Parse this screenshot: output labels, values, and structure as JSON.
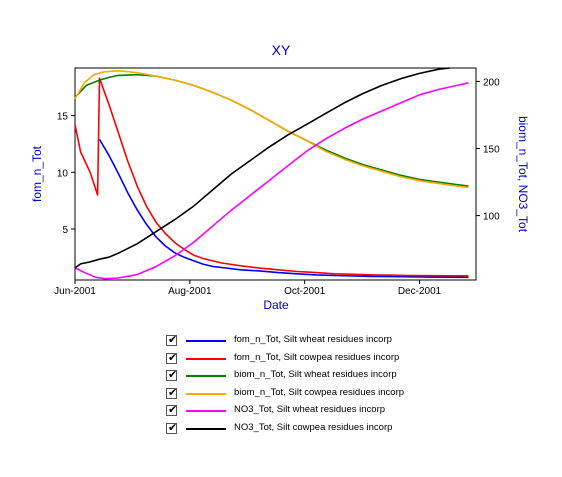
{
  "chart_data": {
    "type": "line",
    "title": "XY",
    "xlabel": "Date",
    "ylabel_left": "fom_n_Tot",
    "ylabel_right": "biom_n_Tot, NO3_Tot",
    "x_ticks": [
      "Jun-2001",
      "Aug-2001",
      "Oct-2001",
      "Dec-2001"
    ],
    "y_left_ticks": [
      "5",
      "10",
      "15"
    ],
    "y_right_ticks": [
      "100",
      "150",
      "200"
    ],
    "x_domain_days": [
      152,
      365
    ],
    "y_left_range": [
      0.5,
      19.2
    ],
    "y_right_range": [
      52,
      210
    ],
    "grid": false,
    "legend_position": "below",
    "series": [
      {
        "name": "fom_n_Tot, Silt wheat residues incorp",
        "axis": "left",
        "color": "#0000ff",
        "points": [
          [
            165,
            12.9
          ],
          [
            170,
            11.5
          ],
          [
            175,
            9.9
          ],
          [
            180,
            8.2
          ],
          [
            185,
            6.7
          ],
          [
            190,
            5.4
          ],
          [
            195,
            4.3
          ],
          [
            200,
            3.5
          ],
          [
            205,
            2.9
          ],
          [
            210,
            2.5
          ],
          [
            215,
            2.2
          ],
          [
            220,
            1.9
          ],
          [
            225,
            1.7
          ],
          [
            230,
            1.6
          ],
          [
            240,
            1.4
          ],
          [
            250,
            1.3
          ],
          [
            260,
            1.15
          ],
          [
            270,
            1.05
          ],
          [
            280,
            0.95
          ],
          [
            290,
            0.9
          ],
          [
            300,
            0.85
          ],
          [
            310,
            0.82
          ],
          [
            320,
            0.8
          ],
          [
            330,
            0.78
          ],
          [
            340,
            0.76
          ],
          [
            350,
            0.75
          ],
          [
            361,
            0.74
          ]
        ]
      },
      {
        "name": "fom_n_Tot, Silt cowpea residues incorp",
        "axis": "left",
        "color": "#ff0000",
        "points": [
          [
            152,
            14.2
          ],
          [
            155,
            11.8
          ],
          [
            160,
            10.0
          ],
          [
            164,
            8.0
          ],
          [
            165,
            18.3
          ],
          [
            170,
            16.0
          ],
          [
            175,
            13.5
          ],
          [
            180,
            11.0
          ],
          [
            185,
            8.8
          ],
          [
            190,
            7.0
          ],
          [
            195,
            5.6
          ],
          [
            200,
            4.6
          ],
          [
            205,
            3.8
          ],
          [
            210,
            3.2
          ],
          [
            215,
            2.7
          ],
          [
            220,
            2.4
          ],
          [
            230,
            2.0
          ],
          [
            240,
            1.75
          ],
          [
            250,
            1.55
          ],
          [
            260,
            1.4
          ],
          [
            270,
            1.25
          ],
          [
            280,
            1.15
          ],
          [
            290,
            1.05
          ],
          [
            300,
            1.0
          ],
          [
            310,
            0.95
          ],
          [
            320,
            0.92
          ],
          [
            330,
            0.9
          ],
          [
            340,
            0.88
          ],
          [
            350,
            0.87
          ],
          [
            361,
            0.86
          ]
        ]
      },
      {
        "name": "biom_n_Tot, Silt wheat residues incorp",
        "axis": "right",
        "color": "#008000",
        "points": [
          [
            152,
            188
          ],
          [
            158,
            197
          ],
          [
            165,
            201
          ],
          [
            170,
            203
          ],
          [
            175,
            204.5
          ],
          [
            185,
            205
          ],
          [
            195,
            204
          ],
          [
            205,
            201
          ],
          [
            215,
            197
          ],
          [
            225,
            192
          ],
          [
            235,
            186
          ],
          [
            245,
            179
          ],
          [
            255,
            171
          ],
          [
            265,
            163
          ],
          [
            275,
            156
          ],
          [
            285,
            149
          ],
          [
            295,
            143
          ],
          [
            305,
            138
          ],
          [
            315,
            134
          ],
          [
            325,
            130
          ],
          [
            335,
            127
          ],
          [
            345,
            125
          ],
          [
            355,
            123
          ],
          [
            361,
            122
          ]
        ]
      },
      {
        "name": "biom_n_Tot, Silt cowpea residues incorp",
        "axis": "right",
        "color": "#ffa500",
        "points": [
          [
            152,
            187
          ],
          [
            157,
            199
          ],
          [
            162,
            205
          ],
          [
            167,
            207
          ],
          [
            175,
            208
          ],
          [
            185,
            206.5
          ],
          [
            195,
            204
          ],
          [
            205,
            201
          ],
          [
            215,
            197
          ],
          [
            225,
            192
          ],
          [
            235,
            186
          ],
          [
            245,
            179
          ],
          [
            255,
            171
          ],
          [
            265,
            163
          ],
          [
            275,
            156
          ],
          [
            285,
            148
          ],
          [
            295,
            142
          ],
          [
            305,
            137
          ],
          [
            315,
            133
          ],
          [
            325,
            129
          ],
          [
            335,
            126
          ],
          [
            345,
            124
          ],
          [
            355,
            122
          ],
          [
            361,
            121
          ]
        ]
      },
      {
        "name": "NO3_Tot, Silt wheat residues incorp",
        "axis": "right",
        "color": "#ff00ff",
        "points": [
          [
            152,
            61
          ],
          [
            158,
            57
          ],
          [
            163,
            54
          ],
          [
            168,
            53
          ],
          [
            175,
            53.5
          ],
          [
            185,
            56
          ],
          [
            195,
            62
          ],
          [
            205,
            70
          ],
          [
            215,
            80
          ],
          [
            225,
            92
          ],
          [
            235,
            104
          ],
          [
            245,
            115
          ],
          [
            255,
            126
          ],
          [
            265,
            137
          ],
          [
            275,
            148
          ],
          [
            285,
            157
          ],
          [
            295,
            165
          ],
          [
            305,
            172
          ],
          [
            315,
            178
          ],
          [
            325,
            184
          ],
          [
            335,
            190
          ],
          [
            345,
            194
          ],
          [
            355,
            197
          ],
          [
            361,
            199
          ]
        ]
      },
      {
        "name": "NO3_Tot, Silt cowpea residues incorp",
        "axis": "right",
        "color": "#000000",
        "points": [
          [
            152,
            61
          ],
          [
            155,
            64
          ],
          [
            160,
            65.5
          ],
          [
            165,
            67.5
          ],
          [
            170,
            69
          ],
          [
            175,
            72
          ],
          [
            185,
            79
          ],
          [
            195,
            88
          ],
          [
            205,
            97
          ],
          [
            215,
            107
          ],
          [
            225,
            119
          ],
          [
            235,
            131
          ],
          [
            245,
            141
          ],
          [
            255,
            151
          ],
          [
            265,
            160
          ],
          [
            275,
            168
          ],
          [
            285,
            176
          ],
          [
            295,
            184
          ],
          [
            305,
            191
          ],
          [
            315,
            197
          ],
          [
            325,
            202
          ],
          [
            335,
            206
          ],
          [
            345,
            209
          ],
          [
            351,
            210
          ]
        ]
      }
    ]
  },
  "legend": {
    "checked": true,
    "items": [
      {
        "label": "fom_n_Tot, Silt wheat residues incorp",
        "color": "#0000ff"
      },
      {
        "label": "fom_n_Tot, Silt cowpea residues incorp",
        "color": "#ff0000"
      },
      {
        "label": "biom_n_Tot, Silt wheat residues incorp",
        "color": "#008000"
      },
      {
        "label": "biom_n_Tot, Silt cowpea residues incorp",
        "color": "#ffa500"
      },
      {
        "label": "NO3_Tot, Silt wheat residues incorp",
        "color": "#ff00ff"
      },
      {
        "label": "NO3_Tot, Silt cowpea residues incorp",
        "color": "#000000"
      }
    ]
  }
}
